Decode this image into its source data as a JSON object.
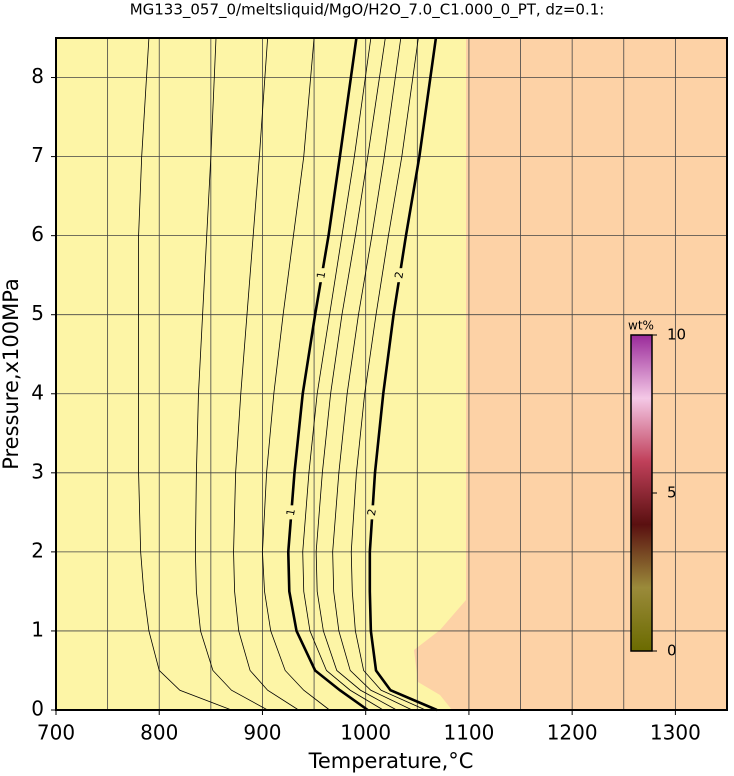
{
  "chart_data": {
    "type": "contour",
    "title": "MG133_057_0/meltsliquid/MgO/H2O_7.0_C1.000_0_PT, dz=0.1:",
    "x_label": "Temperature,°C",
    "y_label": "Pressure,x100MPa",
    "xlim": [
      700,
      1350
    ],
    "ylim": [
      0,
      8.5
    ],
    "xticks": [
      700,
      800,
      900,
      1000,
      1100,
      1200,
      1300
    ],
    "yticks": [
      0,
      1,
      2,
      3,
      4,
      5,
      6,
      7,
      8
    ],
    "x_gridlines": [
      750,
      850,
      950,
      1050,
      1150,
      1250,
      1350
    ],
    "grid": true,
    "line_color": "#000000",
    "series": [
      {
        "level": 0.2,
        "bold": false,
        "x": [
          870,
          820,
          800,
          790,
          785,
          782,
          780,
          780,
          780,
          780,
          783,
          790
        ],
        "y": [
          0,
          0.25,
          0.5,
          1,
          1.5,
          2,
          3,
          4,
          5,
          6,
          7,
          8.5
        ]
      },
      {
        "level": 0.4,
        "bold": false,
        "x": [
          905,
          870,
          852,
          840,
          836,
          835,
          836,
          838,
          842,
          846,
          850,
          855
        ],
        "y": [
          0,
          0.25,
          0.5,
          1,
          1.5,
          2,
          3,
          4,
          5,
          6,
          7,
          8.5
        ]
      },
      {
        "level": 0.6,
        "bold": false,
        "x": [
          935,
          905,
          888,
          877,
          873,
          872,
          874,
          879,
          885,
          891,
          897,
          905
        ],
        "y": [
          0,
          0.25,
          0.5,
          1,
          1.5,
          2,
          3,
          4,
          5,
          6,
          7,
          8.5
        ]
      },
      {
        "level": 0.8,
        "bold": false,
        "x": [
          965,
          940,
          922,
          908,
          902,
          900,
          904,
          911,
          920,
          930,
          940,
          950
        ],
        "y": [
          0,
          0.25,
          0.5,
          1,
          1.5,
          2,
          3,
          4,
          5,
          6,
          7,
          8.5
        ]
      },
      {
        "level": 1,
        "bold": true,
        "x": [
          1002,
          975,
          951,
          933,
          926,
          925,
          931,
          939,
          951,
          964,
          975,
          991
        ],
        "y": [
          0,
          0.25,
          0.5,
          1,
          1.5,
          2,
          3,
          4,
          5,
          6,
          7,
          8.5
        ]
      },
      {
        "level": 1.2,
        "bold": false,
        "x": [
          1017,
          985,
          962,
          946,
          940,
          939,
          945,
          953,
          965,
          977,
          989,
          1005
        ],
        "y": [
          0,
          0.25,
          0.5,
          1,
          1.5,
          2,
          3,
          4,
          5,
          6,
          7,
          8.5
        ]
      },
      {
        "level": 1.4,
        "bold": false,
        "x": [
          1030,
          995,
          972,
          959,
          953,
          952,
          958,
          966,
          977,
          990,
          1002,
          1019
        ],
        "y": [
          0,
          0.25,
          0.5,
          1,
          1.5,
          2,
          3,
          4,
          5,
          6,
          7,
          8.5
        ]
      },
      {
        "level": 1.6,
        "bold": false,
        "x": [
          1045,
          1005,
          985,
          974,
          969,
          968,
          974,
          982,
          993,
          1006,
          1018,
          1034
        ],
        "y": [
          0,
          0.25,
          0.5,
          1,
          1.5,
          2,
          3,
          4,
          5,
          6,
          7,
          8.5
        ]
      },
      {
        "level": 1.8,
        "bold": false,
        "x": [
          1058,
          1015,
          998,
          990,
          987,
          986,
          991,
          999,
          1010,
          1022,
          1035,
          1051
        ],
        "y": [
          0,
          0.25,
          0.5,
          1,
          1.5,
          2,
          3,
          4,
          5,
          6,
          7,
          8.5
        ]
      },
      {
        "level": 2,
        "bold": true,
        "x": [
          1069,
          1024,
          1010,
          1005,
          1004,
          1004,
          1009,
          1017,
          1027,
          1039,
          1052,
          1068
        ],
        "y": [
          0,
          0.25,
          0.5,
          1,
          1.5,
          2,
          3,
          4,
          5,
          6,
          7,
          8.5
        ]
      }
    ],
    "colorbar": {
      "label": "wt%",
      "lim": [
        0,
        10
      ],
      "ticks": [
        0,
        5,
        10
      ],
      "colors": [
        "#6b6b00",
        "#9a8a3a",
        "#5a1010",
        "#c0405a",
        "#f4c8e6",
        "#9a2a9a"
      ]
    }
  }
}
